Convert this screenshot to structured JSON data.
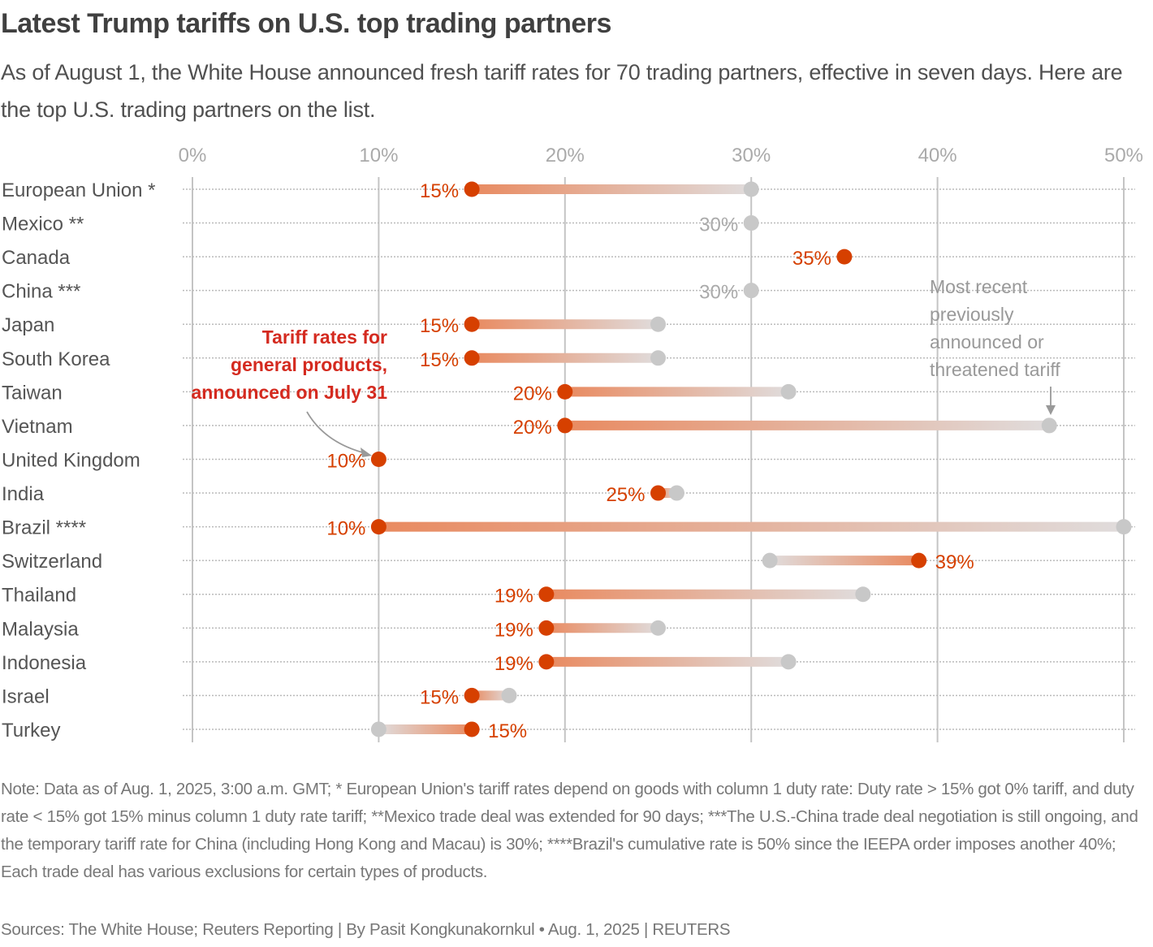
{
  "title": "Latest Trump tariffs on U.S. top trading partners",
  "subtitle": "As of August 1, the White House announced fresh tariff rates for 70 trading partners, effective in seven days. Here are the top U.S. trading partners on the list.",
  "note": "Note: Data as of Aug. 1, 2025, 3:00 a.m. GMT; * European Union's tariff rates depend on goods with column 1 duty rate: Duty rate > 15% got 0% tariff, and duty rate < 15% got 15% minus column 1 duty rate tariff; **Mexico trade deal was extended for 90 days; ***The U.S.-China trade deal negotiation is still ongoing, and the temporary tariff rate for China (including Hong Kong and Macau) is 30%; ****Brazil's cumulative rate is 50% since the IEEPA order imposes another 40%; Each trade deal has various exclusions for certain types of products.",
  "source": "Sources: The White House; Reuters Reporting | By Pasit Kongkunakornkul • Aug. 1, 2025 | REUTERS",
  "colors": {
    "new": "#d64000",
    "previous": "#c8c8c8",
    "annotation_new": "#d42a1f",
    "annotation_prev": "#999999"
  },
  "chart_data": {
    "type": "dumbbell",
    "xlim": [
      0,
      50
    ],
    "x_ticks": [
      "0%",
      "10%",
      "20%",
      "30%",
      "40%",
      "50%"
    ],
    "x_tick_values": [
      0,
      10,
      20,
      30,
      40,
      50
    ],
    "grid": true,
    "annotations": {
      "new": [
        "Tariff rates for",
        "general products,",
        "announced on July 31"
      ],
      "previous": [
        "Most recent",
        "previously",
        "announced or",
        "threatened tariff"
      ]
    },
    "rows": [
      {
        "label": "European Union *",
        "new": 15,
        "previous": 30,
        "new_label": "15%"
      },
      {
        "label": "Mexico **",
        "new": null,
        "previous": 30,
        "new_label": "30%"
      },
      {
        "label": "Canada",
        "new": 35,
        "previous": null,
        "new_label": "35%"
      },
      {
        "label": "China ***",
        "new": null,
        "previous": 30,
        "new_label": "30%"
      },
      {
        "label": "Japan",
        "new": 15,
        "previous": 25,
        "new_label": "15%"
      },
      {
        "label": "South Korea",
        "new": 15,
        "previous": 25,
        "new_label": "15%"
      },
      {
        "label": "Taiwan",
        "new": 20,
        "previous": 32,
        "new_label": "20%"
      },
      {
        "label": "Vietnam",
        "new": 20,
        "previous": 46,
        "new_label": "20%"
      },
      {
        "label": "United Kingdom",
        "new": 10,
        "previous": null,
        "new_label": "10%"
      },
      {
        "label": "India",
        "new": 25,
        "previous": 26,
        "new_label": "25%"
      },
      {
        "label": "Brazil ****",
        "new": 10,
        "previous": 50,
        "new_label": "10%"
      },
      {
        "label": "Switzerland",
        "new": 39,
        "previous": 31,
        "new_label": "39%"
      },
      {
        "label": "Thailand",
        "new": 19,
        "previous": 36,
        "new_label": "19%"
      },
      {
        "label": "Malaysia",
        "new": 19,
        "previous": 25,
        "new_label": "19%"
      },
      {
        "label": "Indonesia",
        "new": 19,
        "previous": 32,
        "new_label": "19%"
      },
      {
        "label": "Israel",
        "new": 15,
        "previous": 17,
        "new_label": "15%"
      },
      {
        "label": "Turkey",
        "new": 15,
        "previous": 10,
        "new_label": "15%"
      }
    ]
  }
}
